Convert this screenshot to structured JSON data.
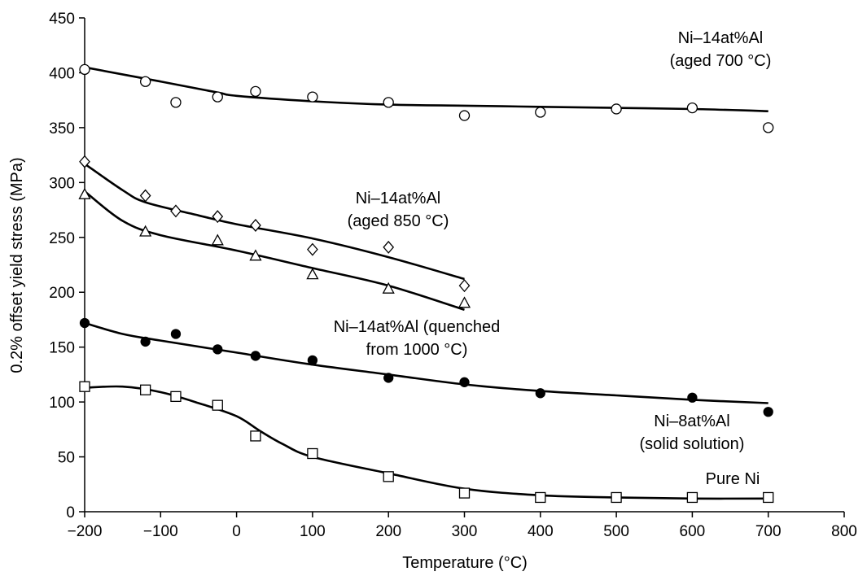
{
  "chart_data": {
    "type": "scatter",
    "title": "",
    "xlabel": "Temperature (°C)",
    "ylabel": "0.2% offset yield stress (MPa)",
    "xlim": [
      -200,
      800
    ],
    "ylim": [
      0,
      450
    ],
    "xticks": [
      -200,
      -100,
      0,
      100,
      200,
      300,
      400,
      500,
      600,
      700,
      800
    ],
    "yticks": [
      0,
      50,
      100,
      150,
      200,
      250,
      300,
      350,
      400,
      450
    ],
    "xtick_labels": [
      "−200",
      "−100",
      "0",
      "100",
      "200",
      "300",
      "400",
      "500",
      "600",
      "700",
      "800"
    ],
    "grid": false,
    "series": [
      {
        "id": "aged700",
        "marker": "circle",
        "filled": false,
        "points": [
          [
            -200,
            403
          ],
          [
            -120,
            392
          ],
          [
            -80,
            373
          ],
          [
            -25,
            378
          ],
          [
            25,
            383
          ],
          [
            100,
            378
          ],
          [
            200,
            373
          ],
          [
            300,
            361
          ],
          [
            400,
            364
          ],
          [
            500,
            367
          ],
          [
            600,
            368
          ],
          [
            700,
            350
          ]
        ],
        "curve": [
          [
            -200,
            405
          ],
          [
            -100,
            392
          ],
          [
            -25,
            382
          ],
          [
            0,
            379
          ],
          [
            100,
            374
          ],
          [
            200,
            371
          ],
          [
            300,
            370
          ],
          [
            400,
            369
          ],
          [
            500,
            368
          ],
          [
            600,
            367
          ],
          [
            700,
            365
          ]
        ]
      },
      {
        "id": "aged850a",
        "marker": "diamond",
        "filled": false,
        "points": [
          [
            -200,
            319
          ],
          [
            -120,
            288
          ],
          [
            -80,
            274
          ],
          [
            -25,
            269
          ],
          [
            25,
            261
          ],
          [
            100,
            239
          ],
          [
            200,
            241
          ],
          [
            300,
            206
          ]
        ],
        "curve": [
          [
            -200,
            317
          ],
          [
            -150,
            293
          ],
          [
            -120,
            282
          ],
          [
            -50,
            270
          ],
          [
            0,
            262
          ],
          [
            100,
            249
          ],
          [
            200,
            232
          ],
          [
            300,
            212
          ]
        ]
      },
      {
        "id": "aged850b",
        "marker": "triangle",
        "filled": false,
        "points": [
          [
            -200,
            289
          ],
          [
            -120,
            255
          ],
          [
            -25,
            247
          ],
          [
            25,
            233
          ],
          [
            100,
            216
          ],
          [
            200,
            203
          ],
          [
            300,
            190
          ]
        ],
        "curve": [
          [
            -200,
            292
          ],
          [
            -150,
            265
          ],
          [
            -100,
            252
          ],
          [
            0,
            238
          ],
          [
            100,
            222
          ],
          [
            200,
            206
          ],
          [
            300,
            184
          ]
        ]
      },
      {
        "id": "quenched",
        "marker": "circle",
        "filled": true,
        "points": [
          [
            -200,
            172
          ],
          [
            -120,
            155
          ],
          [
            -80,
            162
          ],
          [
            -25,
            148
          ],
          [
            25,
            142
          ],
          [
            100,
            138
          ],
          [
            200,
            122
          ],
          [
            300,
            118
          ],
          [
            400,
            108
          ],
          [
            600,
            104
          ],
          [
            700,
            91
          ]
        ],
        "curve": [
          [
            -200,
            172
          ],
          [
            -150,
            162
          ],
          [
            -100,
            156
          ],
          [
            0,
            145
          ],
          [
            100,
            134
          ],
          [
            200,
            125
          ],
          [
            300,
            116
          ],
          [
            400,
            110
          ],
          [
            500,
            106
          ],
          [
            600,
            102
          ],
          [
            700,
            99
          ]
        ]
      },
      {
        "id": "pure_ni",
        "marker": "square",
        "filled": false,
        "points": [
          [
            -200,
            114
          ],
          [
            -120,
            111
          ],
          [
            -80,
            105
          ],
          [
            -25,
            97
          ],
          [
            25,
            69
          ],
          [
            100,
            53
          ],
          [
            200,
            32
          ],
          [
            300,
            17
          ],
          [
            400,
            13
          ],
          [
            500,
            13
          ],
          [
            600,
            13
          ],
          [
            700,
            13
          ]
        ],
        "curve": [
          [
            -200,
            113
          ],
          [
            -150,
            114
          ],
          [
            -100,
            109
          ],
          [
            -50,
            99
          ],
          [
            0,
            87
          ],
          [
            30,
            74
          ],
          [
            60,
            62
          ],
          [
            100,
            50
          ],
          [
            200,
            35
          ],
          [
            300,
            21
          ],
          [
            400,
            15
          ],
          [
            500,
            13
          ],
          [
            600,
            12
          ],
          [
            700,
            12
          ]
        ]
      }
    ],
    "annotations": [
      {
        "id": "aged700",
        "lines": [
          "Ni–14at%Al",
          "(aged 700 °C)"
        ]
      },
      {
        "id": "aged850",
        "lines": [
          "Ni–14at%Al",
          "(aged 850 °C)"
        ]
      },
      {
        "id": "quenched",
        "lines": [
          "Ni–14at%Al (quenched",
          "from 1000 °C)"
        ]
      },
      {
        "id": "solid",
        "lines": [
          "Ni–8at%Al",
          "(solid solution)"
        ]
      },
      {
        "id": "pure",
        "lines": [
          "Pure Ni"
        ]
      }
    ]
  }
}
